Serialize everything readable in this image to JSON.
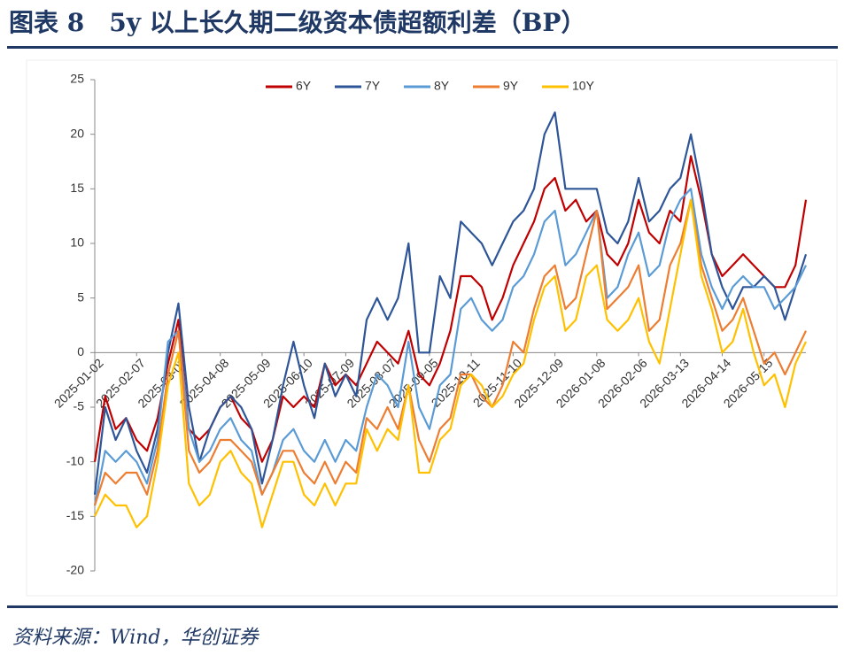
{
  "header": {
    "title": "图表 8　5y 以上长久期二级资本债超额利差（BP）"
  },
  "chart_data": {
    "type": "line",
    "categories": [
      "2025-01-02",
      null,
      null,
      null,
      "2025-02-07",
      null,
      null,
      null,
      "2025-03-07",
      null,
      null,
      null,
      "2025-04-08",
      null,
      null,
      null,
      "2025-05-09",
      null,
      null,
      null,
      "2025-06-10",
      null,
      null,
      null,
      "2025-07-09",
      null,
      null,
      null,
      "2025-08-07",
      null,
      null,
      null,
      "2025-09-05",
      null,
      null,
      null,
      "2025-10-11",
      null,
      null,
      null,
      "2025-11-10",
      null,
      null,
      null,
      "2025-12-09",
      null,
      null,
      null,
      "2026-01-08",
      null,
      null,
      null,
      "2026-02-06",
      null,
      null,
      null,
      "2026-03-13",
      null,
      null,
      null,
      "2026-04-14",
      null,
      null,
      null,
      "2026-05-15",
      null,
      null,
      null,
      null
    ],
    "series": [
      {
        "name": "6Y",
        "color": "#c00000",
        "values": [
          -10,
          -4,
          -7,
          -6,
          -8,
          -9,
          -6,
          -1,
          3,
          -7,
          -8,
          -7,
          -5,
          -4,
          -6,
          -7,
          -10,
          -8,
          -4,
          -5,
          -4,
          -5,
          -1,
          -3,
          -2,
          -3,
          -1,
          1,
          0,
          -1,
          2,
          -2,
          -3,
          -1,
          2,
          7,
          7,
          6,
          3,
          5,
          8,
          10,
          12,
          15,
          16,
          13,
          14,
          12,
          13,
          9,
          8,
          10,
          14,
          11,
          10,
          13,
          12,
          18,
          14,
          9,
          7,
          8,
          9,
          8,
          7,
          6,
          6,
          8,
          14
        ]
      },
      {
        "name": "7Y",
        "color": "#2e5597",
        "values": [
          -13,
          -5,
          -8,
          -6,
          -9,
          -11,
          -7,
          0,
          4.5,
          -5,
          -10,
          -7,
          -5,
          -4,
          -5,
          -7,
          -12,
          -8,
          -3,
          1,
          -3,
          -6,
          -1,
          -4,
          -2,
          -4,
          3,
          5,
          3,
          5,
          10,
          0,
          0,
          7,
          5,
          12,
          11,
          10,
          8,
          10,
          12,
          13,
          15,
          20,
          22,
          15,
          15,
          15,
          15,
          11,
          10,
          12,
          16,
          12,
          13,
          15,
          16,
          20,
          15,
          9,
          6,
          4,
          6,
          6,
          7,
          6,
          3,
          6,
          9
        ]
      },
      {
        "name": "8Y",
        "color": "#5b9bd5",
        "values": [
          -14,
          -9,
          -10,
          -9,
          -10,
          -12,
          -8,
          1,
          2,
          -7,
          -10,
          -9,
          -7,
          -6,
          -8,
          -9,
          -13,
          -11,
          -8,
          -7,
          -9,
          -10,
          -8,
          -10,
          -8,
          -9,
          -5,
          -2,
          -3,
          -5,
          1,
          -5,
          -7,
          -3,
          -2,
          4,
          5,
          3,
          2,
          3,
          6,
          7,
          9,
          12,
          13,
          8,
          9,
          11,
          13,
          5,
          6,
          9,
          11,
          7,
          8,
          12,
          14,
          15,
          9,
          6,
          4,
          6,
          7,
          6,
          6,
          4,
          5,
          6,
          8
        ]
      },
      {
        "name": "9Y",
        "color": "#ed7d31",
        "values": [
          -14,
          -11,
          -12,
          -11,
          -11,
          -13,
          -9,
          -2,
          2,
          -9,
          -11,
          -10,
          -8,
          -8,
          -9,
          -10,
          -13,
          -11,
          -9,
          -9,
          -11,
          -12,
          -10,
          -12,
          -10,
          -11,
          -6,
          -7,
          -5,
          -7,
          -3,
          -8,
          -10,
          -7,
          -6,
          -2,
          -2,
          -4,
          -5,
          -3,
          1,
          0,
          4,
          7,
          8,
          4,
          5,
          9,
          13,
          4,
          5,
          6,
          8,
          2,
          3,
          8,
          10,
          14,
          8,
          5,
          2,
          3,
          5,
          2,
          -1,
          0,
          -2,
          0,
          2
        ]
      },
      {
        "name": "10Y",
        "color": "#ffc000",
        "values": [
          -15,
          -13,
          -14,
          -14,
          -16,
          -15,
          -10,
          -3,
          0,
          -12,
          -14,
          -13,
          -10,
          -9,
          -11,
          -12,
          -16,
          -13,
          -10,
          -10,
          -13,
          -14,
          -12,
          -14,
          -12,
          -12,
          -7,
          -9,
          -7,
          -8,
          -3,
          -11,
          -11,
          -8,
          -7,
          -3,
          -2,
          -3,
          -5,
          -4,
          -2,
          -1,
          3,
          6,
          7,
          2,
          3,
          7,
          8,
          3,
          2,
          3,
          5,
          1,
          -1,
          4,
          9,
          14,
          7,
          4,
          0,
          1,
          4,
          0,
          -3,
          -2,
          -5,
          -1,
          1
        ]
      }
    ],
    "ylim": [
      -20,
      25
    ],
    "yticks": [
      -20,
      -15,
      -10,
      -5,
      0,
      5,
      10,
      15,
      20,
      25
    ],
    "grid": false,
    "legend": "top"
  },
  "source": "资料来源：Wind，华创证券"
}
